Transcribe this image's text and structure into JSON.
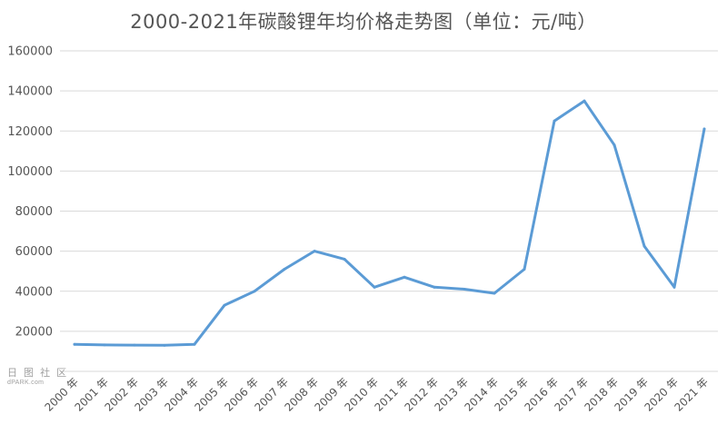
{
  "chart_data": {
    "type": "line",
    "title": "2000-2021年碳酸锂年均价格走势图（单位：元/吨）",
    "categories": [
      "2000 年",
      "2001 年",
      "2002 年",
      "2003 年",
      "2004 年",
      "2005 年",
      "2006 年",
      "2007 年",
      "2008 年",
      "2009 年",
      "2010 年",
      "2011 年",
      "2012 年",
      "2013 年",
      "2014 年",
      "2015 年",
      "2016 年",
      "2017 年",
      "2018 年",
      "2019 年",
      "2020 年",
      "2021 年"
    ],
    "series": [
      {
        "values": [
          13500,
          13200,
          13100,
          13000,
          13500,
          33000,
          40000,
          51000,
          60000,
          56000,
          42000,
          47000,
          42000,
          41000,
          39000,
          51000,
          125000,
          135000,
          113000,
          62500,
          42000,
          121000
        ]
      }
    ],
    "yticks": [
      "20000",
      "40000",
      "60000",
      "80000",
      "100000",
      "120000",
      "140000",
      "160000"
    ],
    "ylim": [
      0,
      160000
    ],
    "grid": true,
    "line_color": "#5b9bd5",
    "grid_color": "#d9d9d9"
  },
  "watermark": {
    "line1": "日 图 社 区",
    "line2": "dPARK.com"
  }
}
